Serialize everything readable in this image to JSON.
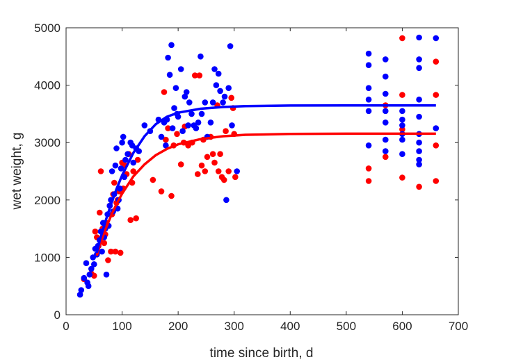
{
  "chart_data": {
    "type": "scatter",
    "xlabel": "time since birth, d",
    "ylabel": "wet weight, g",
    "xlim": [
      0,
      700
    ],
    "ylim": [
      0,
      5000
    ],
    "xticks": [
      0,
      100,
      200,
      300,
      400,
      500,
      600,
      700
    ],
    "yticks": [
      0,
      1000,
      2000,
      3000,
      4000,
      5000
    ],
    "grid": false,
    "legend": "none",
    "series": [
      {
        "color": "#ff0000",
        "points": [
          [
            32,
            620
          ],
          [
            45,
            720
          ],
          [
            50,
            680
          ],
          [
            52,
            1450
          ],
          [
            55,
            1350
          ],
          [
            58,
            1200
          ],
          [
            60,
            1780
          ],
          [
            62,
            2500
          ],
          [
            65,
            1500
          ],
          [
            68,
            1250
          ],
          [
            70,
            1400
          ],
          [
            72,
            1600
          ],
          [
            75,
            950
          ],
          [
            78,
            1900
          ],
          [
            80,
            1100
          ],
          [
            82,
            1750
          ],
          [
            84,
            2100
          ],
          [
            86,
            2300
          ],
          [
            88,
            1100
          ],
          [
            90,
            1950
          ],
          [
            92,
            2000
          ],
          [
            95,
            2150
          ],
          [
            97,
            1080
          ],
          [
            100,
            2650
          ],
          [
            102,
            2200
          ],
          [
            105,
            2600
          ],
          [
            108,
            2450
          ],
          [
            112,
            2800
          ],
          [
            115,
            1650
          ],
          [
            118,
            2300
          ],
          [
            120,
            2500
          ],
          [
            125,
            1680
          ],
          [
            128,
            2700
          ],
          [
            155,
            2350
          ],
          [
            170,
            2150
          ],
          [
            175,
            3880
          ],
          [
            178,
            3050
          ],
          [
            182,
            3250
          ],
          [
            188,
            2070
          ],
          [
            192,
            2950
          ],
          [
            198,
            3150
          ],
          [
            205,
            2620
          ],
          [
            210,
            3000
          ],
          [
            212,
            3280
          ],
          [
            218,
            2950
          ],
          [
            225,
            3000
          ],
          [
            230,
            4170
          ],
          [
            235,
            2450
          ],
          [
            238,
            4170
          ],
          [
            242,
            2600
          ],
          [
            245,
            3050
          ],
          [
            248,
            2500
          ],
          [
            252,
            2750
          ],
          [
            258,
            3100
          ],
          [
            262,
            2800
          ],
          [
            265,
            2650
          ],
          [
            270,
            3650
          ],
          [
            272,
            2500
          ],
          [
            275,
            2800
          ],
          [
            278,
            2400
          ],
          [
            282,
            2350
          ],
          [
            285,
            3200
          ],
          [
            290,
            2500
          ],
          [
            295,
            3780
          ],
          [
            298,
            3600
          ],
          [
            300,
            3150
          ],
          [
            302,
            2400
          ],
          [
            540,
            2550
          ],
          [
            540,
            2330
          ],
          [
            570,
            2750
          ],
          [
            570,
            3650
          ],
          [
            600,
            4820
          ],
          [
            600,
            3830
          ],
          [
            600,
            3230
          ],
          [
            600,
            2390
          ],
          [
            630,
            2230
          ],
          [
            660,
            4410
          ],
          [
            660,
            3830
          ],
          [
            660,
            2950
          ],
          [
            660,
            2330
          ]
        ],
        "fit_curve": [
          [
            55,
            1030
          ],
          [
            60,
            1210
          ],
          [
            70,
            1480
          ],
          [
            80,
            1720
          ],
          [
            90,
            1930
          ],
          [
            100,
            2110
          ],
          [
            120,
            2410
          ],
          [
            140,
            2620
          ],
          [
            160,
            2780
          ],
          [
            180,
            2890
          ],
          [
            200,
            2970
          ],
          [
            240,
            3060
          ],
          [
            280,
            3110
          ],
          [
            320,
            3135
          ],
          [
            400,
            3150
          ],
          [
            500,
            3155
          ],
          [
            660,
            3155
          ]
        ]
      },
      {
        "color": "#0000ff",
        "points": [
          [
            25,
            350
          ],
          [
            27,
            430
          ],
          [
            32,
            640
          ],
          [
            36,
            900
          ],
          [
            38,
            560
          ],
          [
            40,
            500
          ],
          [
            42,
            700
          ],
          [
            45,
            800
          ],
          [
            48,
            1000
          ],
          [
            50,
            880
          ],
          [
            52,
            1150
          ],
          [
            55,
            1050
          ],
          [
            57,
            1200
          ],
          [
            60,
            1300
          ],
          [
            62,
            1450
          ],
          [
            64,
            1100
          ],
          [
            66,
            1600
          ],
          [
            68,
            1350
          ],
          [
            70,
            1500
          ],
          [
            72,
            700
          ],
          [
            74,
            1750
          ],
          [
            76,
            1550
          ],
          [
            78,
            1900
          ],
          [
            80,
            2000
          ],
          [
            82,
            2500
          ],
          [
            84,
            1800
          ],
          [
            86,
            2100
          ],
          [
            88,
            2600
          ],
          [
            90,
            2900
          ],
          [
            92,
            1850
          ],
          [
            94,
            2000
          ],
          [
            96,
            2200
          ],
          [
            98,
            2550
          ],
          [
            100,
            3000
          ],
          [
            102,
            3100
          ],
          [
            104,
            2400
          ],
          [
            106,
            2700
          ],
          [
            110,
            2800
          ],
          [
            115,
            3000
          ],
          [
            118,
            2950
          ],
          [
            120,
            2650
          ],
          [
            125,
            2900
          ],
          [
            130,
            2850
          ],
          [
            140,
            3300
          ],
          [
            150,
            3200
          ],
          [
            165,
            3400
          ],
          [
            170,
            3100
          ],
          [
            175,
            3350
          ],
          [
            178,
            2950
          ],
          [
            180,
            3400
          ],
          [
            182,
            4480
          ],
          [
            185,
            4180
          ],
          [
            188,
            4700
          ],
          [
            190,
            3250
          ],
          [
            193,
            3600
          ],
          [
            196,
            3950
          ],
          [
            198,
            3500
          ],
          [
            200,
            3450
          ],
          [
            205,
            4280
          ],
          [
            208,
            3200
          ],
          [
            212,
            3800
          ],
          [
            215,
            3880
          ],
          [
            218,
            3300
          ],
          [
            220,
            3700
          ],
          [
            224,
            3500
          ],
          [
            228,
            3300
          ],
          [
            232,
            3250
          ],
          [
            236,
            3350
          ],
          [
            240,
            4500
          ],
          [
            242,
            3500
          ],
          [
            248,
            3700
          ],
          [
            252,
            3100
          ],
          [
            258,
            3350
          ],
          [
            262,
            3700
          ],
          [
            265,
            4280
          ],
          [
            268,
            4000
          ],
          [
            272,
            4200
          ],
          [
            275,
            3900
          ],
          [
            280,
            3700
          ],
          [
            283,
            3800
          ],
          [
            286,
            2000
          ],
          [
            290,
            3950
          ],
          [
            293,
            4680
          ],
          [
            296,
            3300
          ],
          [
            305,
            2500
          ],
          [
            540,
            4550
          ],
          [
            540,
            4350
          ],
          [
            540,
            3950
          ],
          [
            540,
            3750
          ],
          [
            540,
            3550
          ],
          [
            540,
            2950
          ],
          [
            570,
            4450
          ],
          [
            570,
            4150
          ],
          [
            570,
            3850
          ],
          [
            570,
            3550
          ],
          [
            570,
            3350
          ],
          [
            570,
            3050
          ],
          [
            570,
            2850
          ],
          [
            600,
            3550
          ],
          [
            600,
            3400
          ],
          [
            600,
            3300
          ],
          [
            600,
            3150
          ],
          [
            600,
            3050
          ],
          [
            600,
            2800
          ],
          [
            630,
            4830
          ],
          [
            630,
            4450
          ],
          [
            630,
            4300
          ],
          [
            630,
            3750
          ],
          [
            630,
            3450
          ],
          [
            630,
            3150
          ],
          [
            630,
            3000
          ],
          [
            630,
            2850
          ],
          [
            630,
            2700
          ],
          [
            630,
            2620
          ],
          [
            660,
            4820
          ],
          [
            660,
            3250
          ]
        ],
        "fit_curve": [
          [
            55,
            1080
          ],
          [
            60,
            1290
          ],
          [
            70,
            1620
          ],
          [
            80,
            1920
          ],
          [
            90,
            2190
          ],
          [
            100,
            2430
          ],
          [
            120,
            2820
          ],
          [
            140,
            3110
          ],
          [
            160,
            3320
          ],
          [
            180,
            3450
          ],
          [
            200,
            3520
          ],
          [
            240,
            3590
          ],
          [
            280,
            3620
          ],
          [
            320,
            3635
          ],
          [
            400,
            3645
          ],
          [
            500,
            3648
          ],
          [
            660,
            3648
          ]
        ]
      }
    ]
  }
}
